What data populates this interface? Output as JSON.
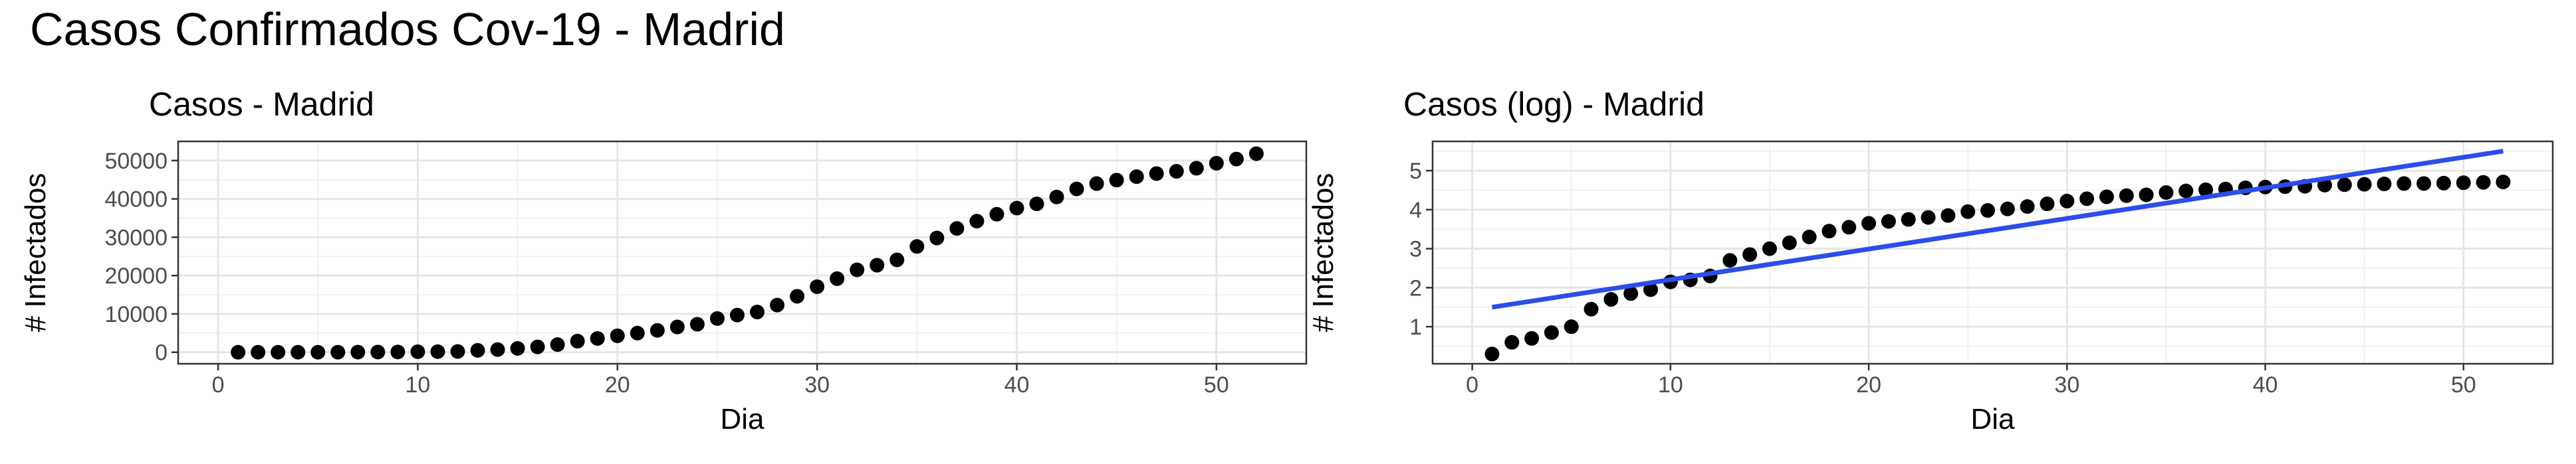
{
  "figure_title": "Casos Confirmados Cov-19 - Madrid",
  "chart_data": [
    {
      "type": "scatter",
      "title": "Casos - Madrid",
      "xlabel": "Dia",
      "ylabel": "# Infectados",
      "xlim": [
        -2,
        54.5
      ],
      "ylim": [
        -3000,
        55000
      ],
      "x_ticks": [
        0,
        10,
        20,
        30,
        40,
        50
      ],
      "y_ticks": [
        0,
        10000,
        20000,
        30000,
        40000,
        50000
      ],
      "grid": true,
      "point_color": "#000000",
      "series": [
        {
          "x": [
            1,
            2,
            3,
            4,
            5,
            6,
            7,
            8,
            9,
            10,
            11,
            12,
            13,
            14,
            15,
            16,
            17,
            18,
            19,
            20,
            21,
            22,
            23,
            24,
            25,
            26,
            27,
            28,
            29,
            30,
            31,
            32,
            33,
            34,
            35,
            36,
            37,
            38,
            39,
            40,
            41,
            42,
            43,
            44,
            45,
            46,
            47,
            48,
            49,
            50,
            51,
            52
          ],
          "values": [
            2,
            4,
            5,
            7,
            10,
            15,
            40,
            60,
            80,
            140,
            160,
            200,
            500,
            700,
            1000,
            1400,
            2000,
            2900,
            3600,
            4300,
            5000,
            5700,
            6600,
            7300,
            8800,
            9700,
            10500,
            12300,
            14600,
            17100,
            19200,
            21500,
            22700,
            24100,
            27600,
            29800,
            32300,
            34200,
            36000,
            37600,
            38700,
            40500,
            42600,
            44000,
            44900,
            45800,
            46600,
            47200,
            48000,
            49300,
            50400,
            51800
          ]
        }
      ]
    },
    {
      "type": "scatter",
      "title": "Casos (log) - Madrid",
      "xlabel": "Dia",
      "ylabel": "# Infectados",
      "xlim": [
        -2,
        54.5
      ],
      "ylim": [
        0.05,
        5.75
      ],
      "x_ticks": [
        0,
        10,
        20,
        30,
        40,
        50
      ],
      "y_ticks": [
        1,
        2,
        3,
        4,
        5
      ],
      "grid": true,
      "point_color": "#000000",
      "trend_color": "#2b4ee8",
      "series": [
        {
          "x": [
            1,
            2,
            3,
            4,
            5,
            6,
            7,
            8,
            9,
            10,
            11,
            12,
            13,
            14,
            15,
            16,
            17,
            18,
            19,
            20,
            21,
            22,
            23,
            24,
            25,
            26,
            27,
            28,
            29,
            30,
            31,
            32,
            33,
            34,
            35,
            36,
            37,
            38,
            39,
            40,
            41,
            42,
            43,
            44,
            45,
            46,
            47,
            48,
            49,
            50,
            51,
            52
          ],
          "values": [
            0.3,
            0.6,
            0.7,
            0.85,
            1.0,
            1.45,
            1.7,
            1.85,
            1.95,
            2.15,
            2.2,
            2.3,
            2.7,
            2.85,
            3.0,
            3.15,
            3.3,
            3.45,
            3.55,
            3.65,
            3.7,
            3.75,
            3.8,
            3.85,
            3.95,
            3.98,
            4.02,
            4.08,
            4.15,
            4.22,
            4.28,
            4.33,
            4.36,
            4.38,
            4.44,
            4.48,
            4.51,
            4.53,
            4.56,
            4.58,
            4.59,
            4.6,
            4.63,
            4.64,
            4.65,
            4.66,
            4.67,
            4.67,
            4.68,
            4.69,
            4.7,
            4.71
          ]
        }
      ],
      "trend_line": {
        "x": [
          1,
          52
        ],
        "y": [
          1.5,
          5.5
        ]
      }
    }
  ]
}
